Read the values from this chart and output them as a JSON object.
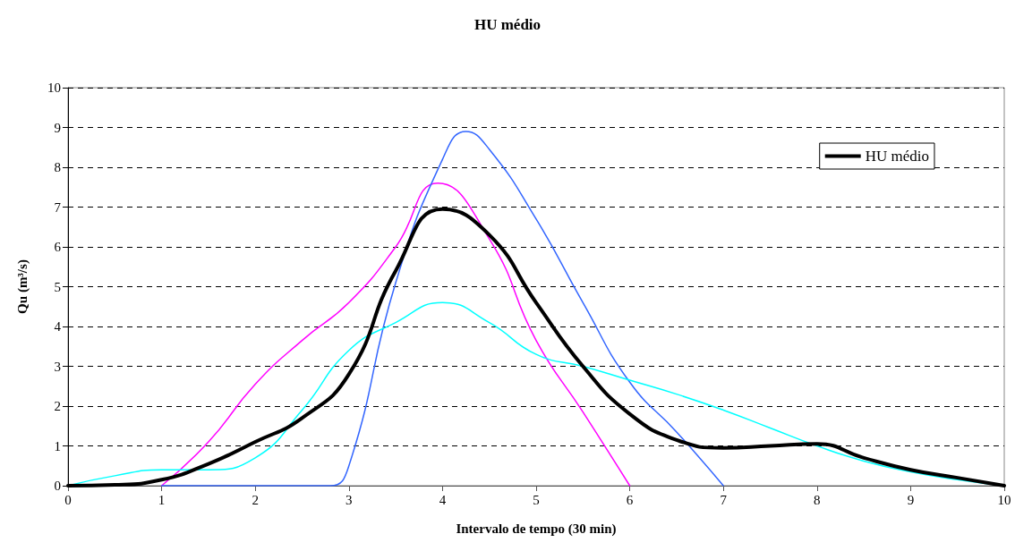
{
  "chart_data": {
    "type": "line",
    "title": "HU médio",
    "xlabel": "Intervalo de tempo (30 min)",
    "ylabel": "Qu (m³/s)",
    "xlim": [
      0,
      10
    ],
    "xticks": [
      0,
      1,
      2,
      3,
      4,
      5,
      6,
      7,
      8,
      9,
      10
    ],
    "ylim": [
      0,
      10
    ],
    "yticks": [
      0,
      1,
      2,
      3,
      4,
      5,
      6,
      7,
      8,
      9,
      10
    ],
    "grid": "y",
    "legend": "top right",
    "marker": "none",
    "line_style": "solid",
    "series": [
      {
        "color": "#ff00ff",
        "x": [
          1,
          1.5,
          2,
          2.5,
          3,
          3.5,
          3.95,
          4.5,
          5,
          5.5,
          6
        ],
        "values": [
          0,
          1.1,
          2.55,
          3.65,
          4.6,
          6.0,
          7.6,
          6.2,
          3.65,
          1.85,
          0
        ]
      },
      {
        "color": "#3366ff",
        "x": [
          1,
          2,
          2.8,
          3,
          3.5,
          4,
          4.25,
          4.5,
          5,
          5.5,
          6,
          6.5,
          7
        ],
        "values": [
          0,
          0,
          0,
          0.5,
          5.1,
          8.2,
          8.9,
          8.45,
          6.7,
          4.6,
          2.6,
          1.35,
          0
        ]
      },
      {
        "color": "#00ffff",
        "x": [
          0,
          0.5,
          1,
          1.5,
          2,
          2.5,
          3,
          3.5,
          4,
          4.5,
          5,
          5.5,
          6,
          6.5,
          7,
          7.5,
          8,
          8.5,
          9,
          9.5,
          10
        ],
        "values": [
          0,
          0.25,
          0.4,
          0.4,
          0.7,
          1.9,
          3.4,
          4.1,
          4.6,
          4.1,
          3.3,
          3.0,
          2.65,
          2.3,
          1.9,
          1.45,
          1.0,
          0.62,
          0.35,
          0.15,
          0
        ]
      },
      {
        "name": "HU médio",
        "color": "#000000",
        "x": [
          0,
          0.5,
          1,
          1.5,
          2,
          2.5,
          3,
          3.5,
          4,
          4.5,
          5,
          5.5,
          6,
          6.5,
          7,
          7.5,
          8,
          8.5,
          9,
          9.5,
          10
        ],
        "values": [
          0,
          0.02,
          0.15,
          0.55,
          1.1,
          1.7,
          2.8,
          5.4,
          6.95,
          6.3,
          4.6,
          3.0,
          1.8,
          1.15,
          0.95,
          1.0,
          1.05,
          0.7,
          0.4,
          0.2,
          0
        ]
      }
    ]
  }
}
